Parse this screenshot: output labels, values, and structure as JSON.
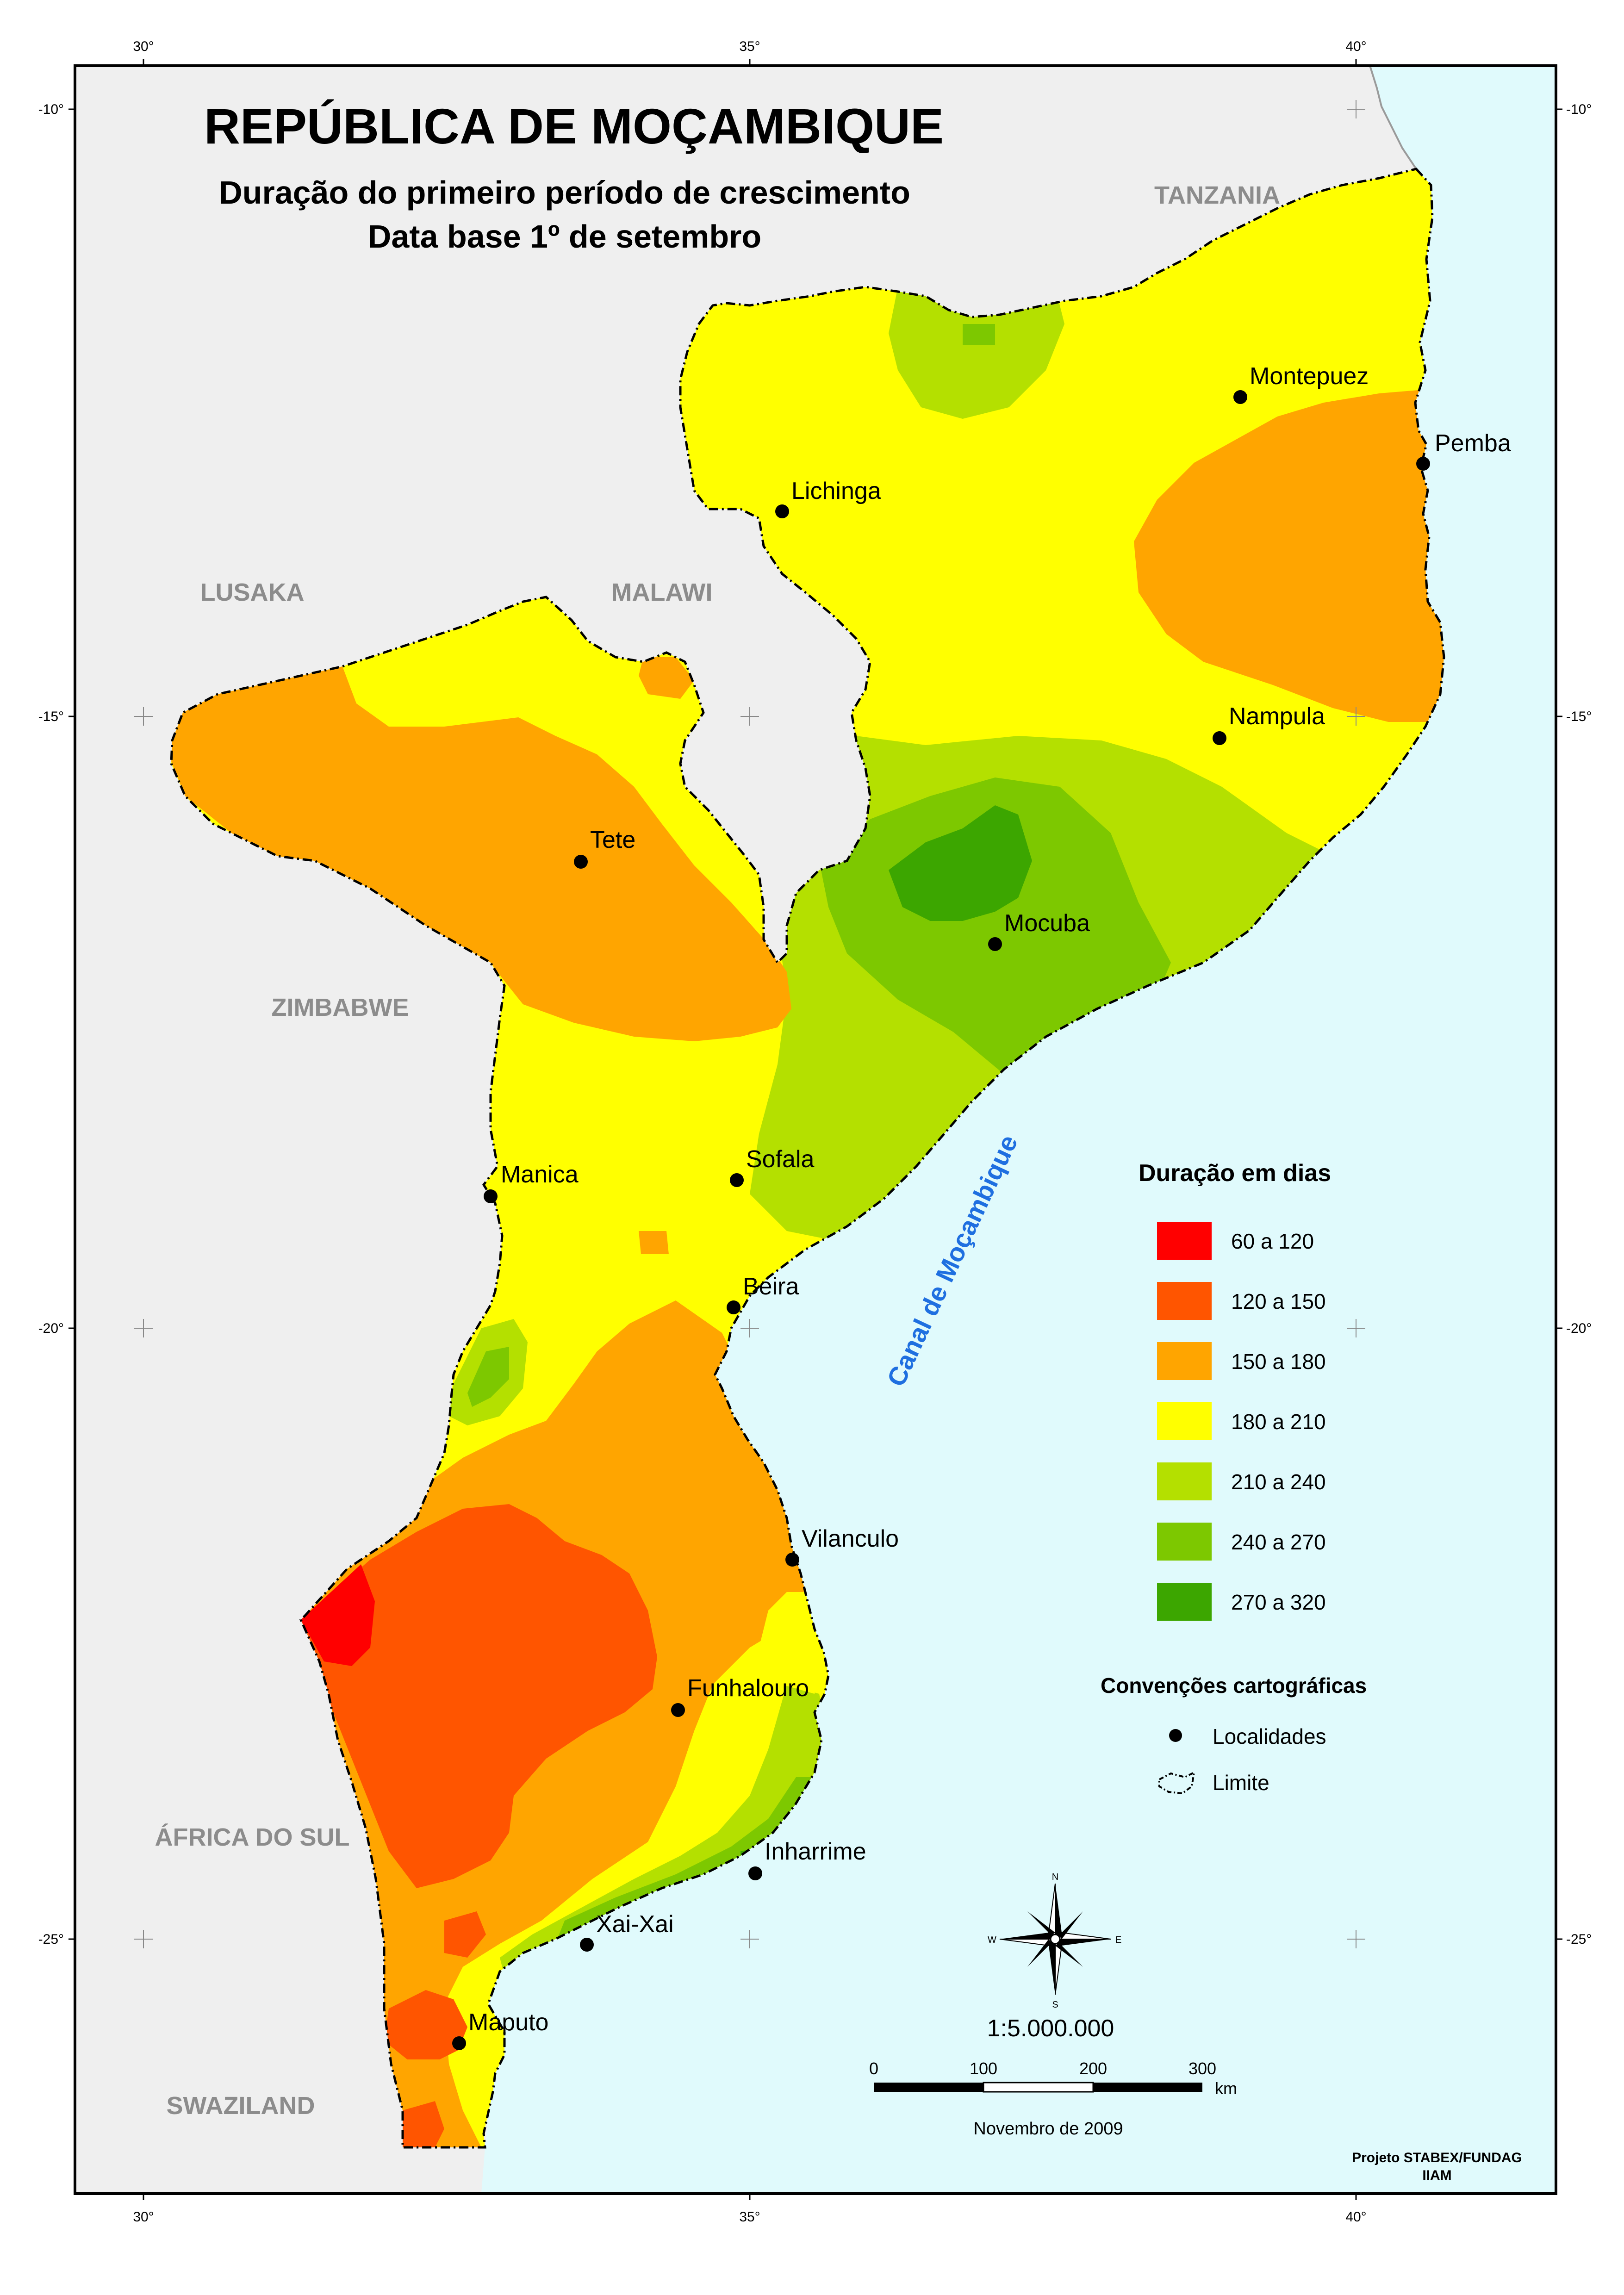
{
  "title": {
    "main": "REPÚBLICA DE MOÇAMBIQUE",
    "line1": "Duração do primeiro período de crescimento",
    "line2": "Data base 1º de setembro"
  },
  "graticule": {
    "lon_top": [
      "30°",
      "35°",
      "40°"
    ],
    "lon_bottom": [
      "30°",
      "35°",
      "40°"
    ],
    "lat_left": [
      "-10°",
      "-15°",
      "-20°",
      "-25°"
    ],
    "lat_right": [
      "-10°",
      "-15°",
      "-20°",
      "-25°"
    ]
  },
  "countries": {
    "tanzania": "TANZANIA",
    "lusaka": "LUSAKA",
    "malawi": "MALAWI",
    "zimbabwe": "ZIMBABWE",
    "south_africa": "ÁFRICA DO SUL",
    "swaziland": "SWAZILAND"
  },
  "sea_label": "Canal de Moçambique",
  "cities": [
    {
      "name": "Montepuez"
    },
    {
      "name": "Pemba"
    },
    {
      "name": "Lichinga"
    },
    {
      "name": "Nampula"
    },
    {
      "name": "Tete"
    },
    {
      "name": "Mocuba"
    },
    {
      "name": "Manica"
    },
    {
      "name": "Sofala"
    },
    {
      "name": "Beira"
    },
    {
      "name": "Vilanculo"
    },
    {
      "name": "Funhalouro"
    },
    {
      "name": "Inharrime"
    },
    {
      "name": "Xai-Xai"
    },
    {
      "name": "Maputo"
    }
  ],
  "legend": {
    "title": "Duração em dias",
    "classes": [
      {
        "label": "60 a 120",
        "color": "#ff0000"
      },
      {
        "label": "120 a 150",
        "color": "#ff5500"
      },
      {
        "label": "150 a 180",
        "color": "#ffa500"
      },
      {
        "label": "180 a 210",
        "color": "#ffff00"
      },
      {
        "label": "210 a 240",
        "color": "#b4e000"
      },
      {
        "label": "240 a 270",
        "color": "#7dc800"
      },
      {
        "label": "270 a 320",
        "color": "#3ca600"
      }
    ],
    "conventions_title": "Convenções cartográficas",
    "localidades": "Localidades",
    "limite": "Limite"
  },
  "compass": {
    "n": "N",
    "s": "S",
    "e": "E",
    "w": "W"
  },
  "scale": {
    "ratio": "1:5.000.000",
    "ticks": [
      "0",
      "100",
      "200",
      "300"
    ],
    "unit": "km"
  },
  "date": "Novembro de 2009",
  "credit": {
    "line1": "Projeto STABEX/FUNDAG",
    "line2": "IIAM"
  },
  "colors": {
    "sea": "#e0fafc",
    "land_other": "#efefef"
  }
}
